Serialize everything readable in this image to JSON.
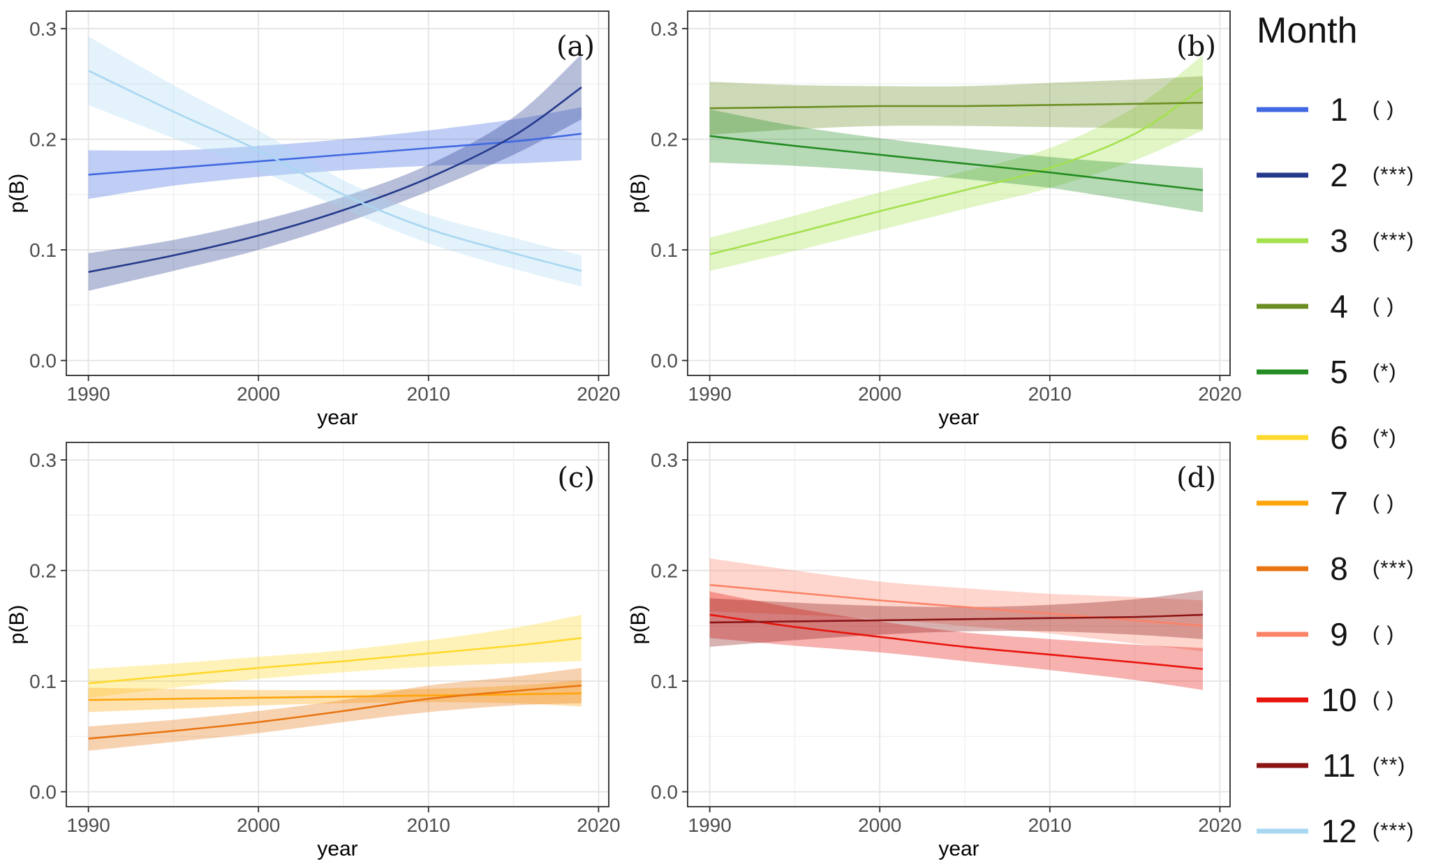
{
  "legend": {
    "title": "Month"
  },
  "chart_data": {
    "type": "line",
    "title": "",
    "xlabel": "year",
    "ylabel": "p(B)",
    "x": [
      1990,
      1995,
      2000,
      2005,
      2010,
      2015,
      2019
    ],
    "xlim": [
      1988.7,
      2020.6
    ],
    "ylim": [
      -0.0135,
      0.3158
    ],
    "x_ticks": [
      1990,
      2000,
      2010,
      2020
    ],
    "x_tick_labels": [
      "1990",
      "2000",
      "2010",
      "2020"
    ],
    "y_ticks": [
      0.0,
      0.1,
      0.2,
      0.3
    ],
    "y_tick_labels": [
      "0.0",
      "0.1",
      "0.2",
      "0.3"
    ],
    "x_minor": [
      1995,
      2005,
      2015
    ],
    "y_minor": [
      0.05,
      0.15,
      0.25
    ],
    "grid": true,
    "legend_position": "right",
    "ribbon_opacity": 0.33,
    "panels": [
      {
        "id": "a",
        "tag": "(a)",
        "months": [
          1,
          2,
          12
        ]
      },
      {
        "id": "b",
        "tag": "(b)",
        "months": [
          3,
          4,
          5
        ]
      },
      {
        "id": "c",
        "tag": "(c)",
        "months": [
          6,
          7,
          8
        ]
      },
      {
        "id": "d",
        "tag": "(d)",
        "months": [
          9,
          10,
          11
        ]
      }
    ],
    "series": [
      {
        "month": 1,
        "significance": "( )",
        "color": "#4169E1",
        "mean": [
          0.168,
          0.174,
          0.18,
          0.186,
          0.192,
          0.198,
          0.205
        ],
        "lower": [
          0.146,
          0.158,
          0.166,
          0.172,
          0.176,
          0.178,
          0.181
        ],
        "upper": [
          0.19,
          0.19,
          0.194,
          0.2,
          0.208,
          0.218,
          0.229
        ]
      },
      {
        "month": 2,
        "significance": "(***)",
        "color": "#24398B",
        "mean": [
          0.08,
          0.095,
          0.113,
          0.136,
          0.165,
          0.203,
          0.247
        ],
        "lower": [
          0.063,
          0.081,
          0.1,
          0.124,
          0.153,
          0.186,
          0.218
        ],
        "upper": [
          0.097,
          0.109,
          0.126,
          0.148,
          0.177,
          0.22,
          0.277
        ]
      },
      {
        "month": 3,
        "significance": "(***)",
        "color": "#A4E14E",
        "mean": [
          0.096,
          0.115,
          0.135,
          0.154,
          0.174,
          0.205,
          0.247
        ],
        "lower": [
          0.081,
          0.099,
          0.118,
          0.137,
          0.156,
          0.181,
          0.208
        ],
        "upper": [
          0.111,
          0.131,
          0.152,
          0.171,
          0.192,
          0.229,
          0.276
        ]
      },
      {
        "month": 4,
        "significance": "( )",
        "color": "#6B8E23",
        "mean": [
          0.228,
          0.229,
          0.23,
          0.23,
          0.231,
          0.232,
          0.233
        ],
        "lower": [
          0.204,
          0.209,
          0.212,
          0.212,
          0.211,
          0.21,
          0.209
        ],
        "upper": [
          0.252,
          0.249,
          0.248,
          0.248,
          0.251,
          0.254,
          0.257
        ]
      },
      {
        "month": 5,
        "significance": "(*)",
        "color": "#228B22",
        "mean": [
          0.203,
          0.194,
          0.186,
          0.178,
          0.17,
          0.161,
          0.154
        ],
        "lower": [
          0.179,
          0.176,
          0.171,
          0.164,
          0.156,
          0.144,
          0.134
        ],
        "upper": [
          0.227,
          0.212,
          0.201,
          0.192,
          0.184,
          0.178,
          0.174
        ]
      },
      {
        "month": 6,
        "significance": "(*)",
        "color": "#FFD92B",
        "mean": [
          0.098,
          0.105,
          0.112,
          0.118,
          0.125,
          0.132,
          0.139
        ],
        "lower": [
          0.085,
          0.094,
          0.102,
          0.108,
          0.113,
          0.116,
          0.118
        ],
        "upper": [
          0.111,
          0.116,
          0.122,
          0.128,
          0.137,
          0.148,
          0.16
        ]
      },
      {
        "month": 7,
        "significance": "( )",
        "color": "#FFA40A",
        "mean": [
          0.083,
          0.084,
          0.085,
          0.086,
          0.087,
          0.088,
          0.089
        ],
        "lower": [
          0.072,
          0.075,
          0.078,
          0.08,
          0.081,
          0.08,
          0.077
        ],
        "upper": [
          0.094,
          0.093,
          0.092,
          0.092,
          0.093,
          0.096,
          0.101
        ]
      },
      {
        "month": 8,
        "significance": "(***)",
        "color": "#E87511",
        "mean": [
          0.048,
          0.055,
          0.063,
          0.073,
          0.084,
          0.091,
          0.096
        ],
        "lower": [
          0.037,
          0.045,
          0.053,
          0.063,
          0.072,
          0.078,
          0.08
        ],
        "upper": [
          0.059,
          0.065,
          0.073,
          0.083,
          0.096,
          0.104,
          0.112
        ]
      },
      {
        "month": 9,
        "significance": "( )",
        "color": "#FB8368",
        "mean": [
          0.187,
          0.18,
          0.173,
          0.167,
          0.161,
          0.155,
          0.15
        ],
        "lower": [
          0.163,
          0.16,
          0.156,
          0.15,
          0.143,
          0.134,
          0.127
        ],
        "upper": [
          0.211,
          0.2,
          0.19,
          0.184,
          0.179,
          0.176,
          0.173
        ]
      },
      {
        "month": 10,
        "significance": "( )",
        "color": "#E8130C",
        "mean": [
          0.16,
          0.149,
          0.14,
          0.131,
          0.124,
          0.117,
          0.111
        ],
        "lower": [
          0.139,
          0.132,
          0.126,
          0.118,
          0.11,
          0.101,
          0.092
        ],
        "upper": [
          0.181,
          0.166,
          0.154,
          0.144,
          0.138,
          0.133,
          0.13
        ]
      },
      {
        "month": 11,
        "significance": "(**)",
        "color": "#8B1515",
        "mean": [
          0.153,
          0.154,
          0.155,
          0.156,
          0.157,
          0.158,
          0.16
        ],
        "lower": [
          0.131,
          0.137,
          0.142,
          0.145,
          0.145,
          0.142,
          0.138
        ],
        "upper": [
          0.175,
          0.171,
          0.168,
          0.167,
          0.169,
          0.174,
          0.182
        ]
      },
      {
        "month": 12,
        "significance": "(***)",
        "color": "#A9D7F2",
        "mean": [
          0.262,
          0.225,
          0.19,
          0.15,
          0.119,
          0.097,
          0.081
        ],
        "lower": [
          0.231,
          0.201,
          0.172,
          0.137,
          0.106,
          0.083,
          0.067
        ],
        "upper": [
          0.293,
          0.249,
          0.208,
          0.163,
          0.132,
          0.111,
          0.095
        ]
      }
    ]
  }
}
